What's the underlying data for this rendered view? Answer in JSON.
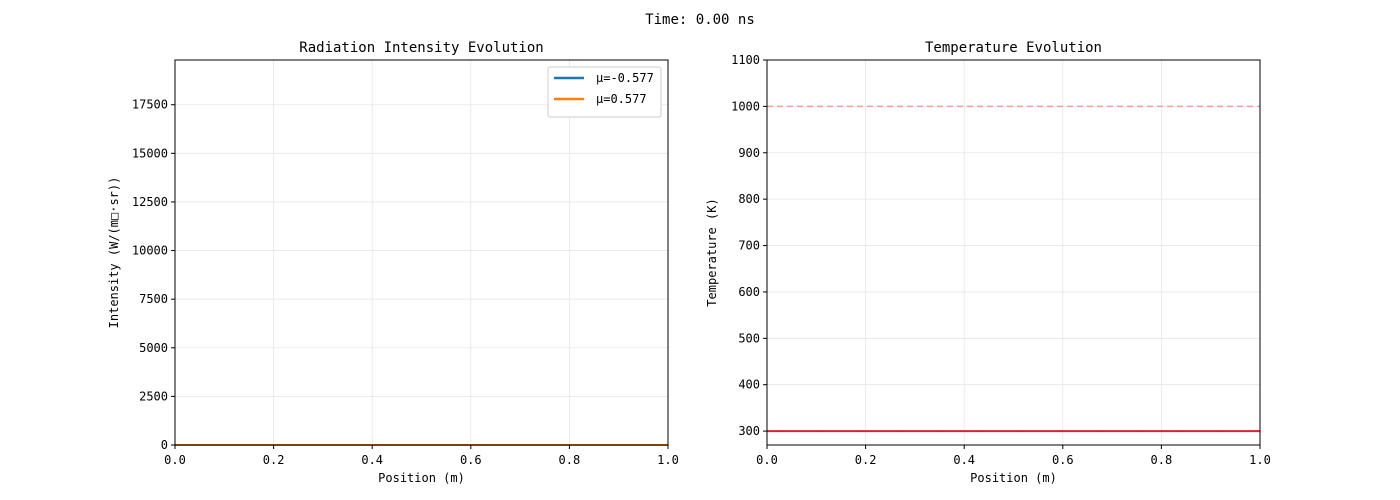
{
  "figure": {
    "suptitle": "Time: 0.00 ns"
  },
  "chart_data": [
    {
      "type": "line",
      "title": "Radiation Intensity Evolution",
      "xlabel": "Position (m)",
      "ylabel": "Intensity (W/(m□·sr))",
      "xlim": [
        0,
        1
      ],
      "ylim": [
        0,
        19800
      ],
      "xticks": [
        0.0,
        0.2,
        0.4,
        0.6,
        0.8,
        1.0
      ],
      "xtick_labels": [
        "0.0",
        "0.2",
        "0.4",
        "0.6",
        "0.8",
        "1.0"
      ],
      "yticks": [
        0,
        2500,
        5000,
        7500,
        10000,
        12500,
        15000,
        17500
      ],
      "ytick_labels": [
        "0",
        "2500",
        "5000",
        "7500",
        "10000",
        "12500",
        "15000",
        "17500"
      ],
      "grid": true,
      "legend_position": "top-right",
      "series": [
        {
          "name": "μ=-0.577",
          "color": "#1f77b4",
          "x": [
            0,
            1
          ],
          "y": [
            0,
            0
          ]
        },
        {
          "name": "μ=0.577",
          "color": "#ff7f0e",
          "x": [
            0,
            1
          ],
          "y": [
            0,
            0
          ]
        }
      ]
    },
    {
      "type": "line",
      "title": "Temperature Evolution",
      "xlabel": "Position (m)",
      "ylabel": "Temperature (K)",
      "xlim": [
        0,
        1
      ],
      "ylim": [
        270,
        1100
      ],
      "xticks": [
        0.0,
        0.2,
        0.4,
        0.6,
        0.8,
        1.0
      ],
      "xtick_labels": [
        "0.0",
        "0.2",
        "0.4",
        "0.6",
        "0.8",
        "1.0"
      ],
      "yticks": [
        300,
        400,
        500,
        600,
        700,
        800,
        900,
        1000,
        1100
      ],
      "ytick_labels": [
        "300",
        "400",
        "500",
        "600",
        "700",
        "800",
        "900",
        "1000",
        "1100"
      ],
      "grid": true,
      "series": [
        {
          "color": "#d62728",
          "x": [
            0,
            1
          ],
          "y": [
            300,
            300
          ]
        }
      ],
      "reference_lines": [
        {
          "y": 1000,
          "color": "#f4a09a",
          "style": "dashed"
        },
        {
          "y": 300,
          "color": "#4a6fd8",
          "style": "dashed"
        }
      ]
    }
  ]
}
